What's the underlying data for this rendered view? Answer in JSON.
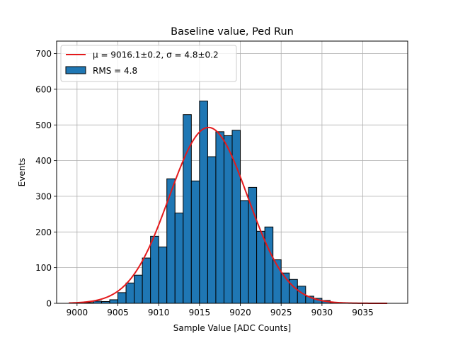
{
  "chart_data": {
    "type": "bar",
    "title": "Baseline value, Ped Run",
    "xlabel": "Sample Value [ADC Counts]",
    "ylabel": "Events",
    "xlim": [
      8997.5,
      9040.5
    ],
    "ylim": [
      0,
      735
    ],
    "grid": true,
    "legend_position": "top-left",
    "x_ticks": [
      9000,
      9005,
      9010,
      9015,
      9020,
      9025,
      9030,
      9035
    ],
    "y_ticks": [
      0,
      100,
      200,
      300,
      400,
      500,
      600,
      700
    ],
    "bin_width": 1,
    "bins": {
      "left_edges": [
        9000,
        9001,
        9002,
        9003,
        9004,
        9005,
        9006,
        9007,
        9008,
        9009,
        9010,
        9011,
        9012,
        9013,
        9014,
        9015,
        9016,
        9017,
        9018,
        9019,
        9020,
        9021,
        9022,
        9023,
        9024,
        9025,
        9026,
        9027,
        9028,
        9029,
        9030,
        9031
      ],
      "values": [
        1,
        2,
        6,
        5,
        10,
        30,
        57,
        79,
        127,
        188,
        158,
        349,
        253,
        529,
        343,
        567,
        411,
        481,
        470,
        485,
        288,
        325,
        202,
        214,
        122,
        85,
        67,
        48,
        20,
        14,
        8,
        2
      ]
    },
    "fit_curve": {
      "model": "gaussian",
      "mu": 9016.1,
      "sigma": 4.8,
      "amplitude": 493,
      "x_range": [
        8999,
        9038
      ]
    },
    "legend": [
      {
        "label": "$\\mu = 9016.1{\\pm}0.2$, $\\sigma = 4.8{\\pm}0.2$",
        "display_mu": "μ = 9016.1±0.2, ",
        "display_sigma": "σ = 4.8±0.2",
        "kind": "line",
        "color": "#e41a1c"
      },
      {
        "label": "RMS = 4.8",
        "kind": "patch",
        "color": "#1f77b4"
      }
    ],
    "colors": {
      "bar_fill": "#1f77b4",
      "bar_edge": "#000000",
      "fit_line": "#e41a1c",
      "grid": "#b0b0b0"
    }
  }
}
